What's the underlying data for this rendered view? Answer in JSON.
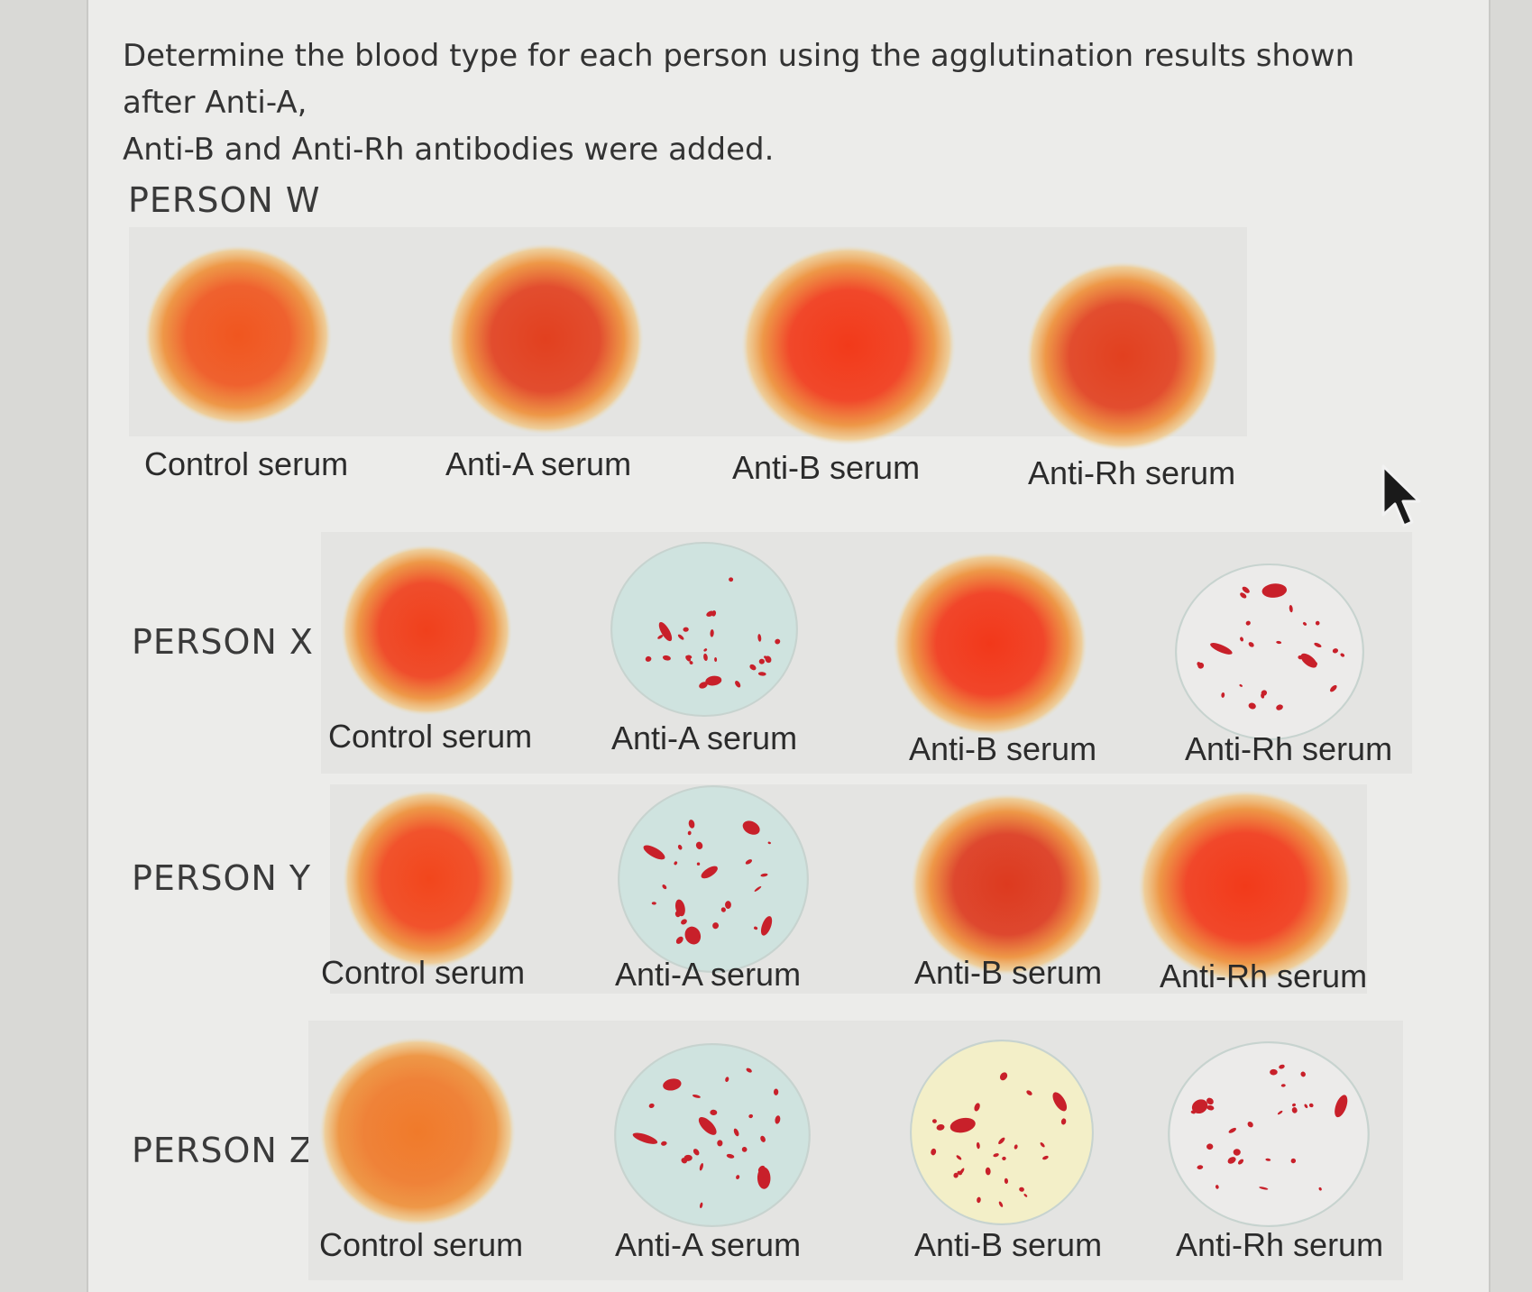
{
  "question": {
    "line1": "Determine the blood type for each person using the agglutination results shown after Anti-A,",
    "line2": "Anti-B and Anti-Rh antibodies were added."
  },
  "persons": [
    {
      "label": "PERSON W",
      "wells": [
        {
          "serum": "Control serum",
          "result": "smooth",
          "tint": "#f0561f"
        },
        {
          "serum": "Anti-A serum",
          "result": "smooth",
          "tint": "#e2401f"
        },
        {
          "serum": "Anti-B serum",
          "result": "smooth",
          "tint": "#f23a1a"
        },
        {
          "serum": "Anti-Rh serum",
          "result": "smooth",
          "tint": "#e2401f"
        }
      ]
    },
    {
      "label": "PERSON X",
      "wells": [
        {
          "serum": "Control serum",
          "result": "smooth",
          "tint": "#f0401c"
        },
        {
          "serum": "Anti-A serum",
          "result": "agglutinated",
          "tint": "#cfe3df"
        },
        {
          "serum": "Anti-B serum",
          "result": "smooth",
          "tint": "#f2381a"
        },
        {
          "serum": "Anti-Rh serum",
          "result": "agglutinated",
          "tint": "#ecebea"
        }
      ]
    },
    {
      "label": "PERSON Y",
      "wells": [
        {
          "serum": "Control serum",
          "result": "smooth",
          "tint": "#f2461c"
        },
        {
          "serum": "Anti-A serum",
          "result": "agglutinated",
          "tint": "#cfe3df"
        },
        {
          "serum": "Anti-B serum",
          "result": "smooth",
          "tint": "#dd3a1f"
        },
        {
          "serum": "Anti-Rh serum",
          "result": "smooth",
          "tint": "#f23a1a"
        }
      ]
    },
    {
      "label": "PERSON Z",
      "wells": [
        {
          "serum": "Control serum",
          "result": "smooth",
          "tint": "#f07a2a"
        },
        {
          "serum": "Anti-A serum",
          "result": "agglutinated",
          "tint": "#cfe3df"
        },
        {
          "serum": "Anti-B serum",
          "result": "agglutinated",
          "tint": "#f3efc8"
        },
        {
          "serum": "Anti-Rh serum",
          "result": "agglutinated",
          "tint": "#ecebea"
        }
      ]
    }
  ]
}
